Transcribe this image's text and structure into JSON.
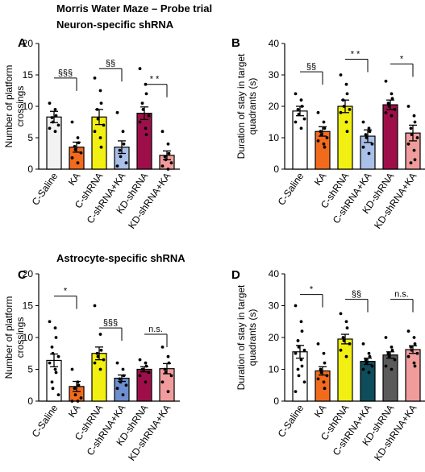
{
  "figure": {
    "title": "Morris Water Maze – Probe trial",
    "section_neuron": "Neuron-specific shRNA",
    "section_astro": "Astrocyte-specific shRNA"
  },
  "chart_data": [
    {
      "panel": "A",
      "type": "bar",
      "ylabel": "Number of platform crossings",
      "ylim": [
        0,
        20
      ],
      "yticks": [
        0,
        5,
        10,
        15,
        20
      ],
      "categories": [
        "C-Saline",
        "KA",
        "C-shRNA",
        "C-shRNA+KA",
        "KD-shRNA",
        "KD-shRNA+KA"
      ],
      "values": [
        8.3,
        3.5,
        8.3,
        3.5,
        8.9,
        2.2
      ],
      "sem": [
        0.9,
        0.8,
        1.2,
        1.0,
        1.0,
        0.7
      ],
      "colors": [
        "#f2f2f2",
        "#f26b1d",
        "#f2ef12",
        "#a9c0e8",
        "#9e0f4a",
        "#f19c9c"
      ],
      "points": [
        [
          10.5,
          9.5,
          8.5,
          8.2,
          7.5,
          7.0,
          6.5,
          6.0
        ],
        [
          7.5,
          5.0,
          4.2,
          3.6,
          3.1,
          2.6,
          1.8,
          1.0
        ],
        [
          14.5,
          12.5,
          10.5,
          9.5,
          8.0,
          7.0,
          6.0,
          5.0,
          3.5
        ],
        [
          9.0,
          6.0,
          4.0,
          3.0,
          2.0,
          1.0,
          0.5
        ],
        [
          16.0,
          13.5,
          12.0,
          10.5,
          9.5,
          8.5,
          7.5,
          6.5,
          5.5
        ],
        [
          6.0,
          4.0,
          2.5,
          2.0,
          1.5,
          1.0,
          0.5,
          0.0
        ]
      ],
      "brackets": [
        {
          "from": 0,
          "to": 1,
          "y": 14.5,
          "label": "§§§"
        },
        {
          "from": 2,
          "to": 3,
          "y": 16.0,
          "label": "§§"
        },
        {
          "from": 4,
          "to": 5,
          "y": 13.5,
          "label": "**"
        }
      ]
    },
    {
      "panel": "B",
      "type": "bar",
      "ylabel": "Duration of stay in target quadrants (s)",
      "ylim": [
        0,
        40
      ],
      "yticks": [
        0,
        10,
        20,
        30,
        40
      ],
      "categories": [
        "C-Saline",
        "KA",
        "C-shRNA",
        "C-shRNA+KA",
        "KD-shRNA",
        "KD-shRNA+KA"
      ],
      "values": [
        18.5,
        12.0,
        20.0,
        10.5,
        20.5,
        11.5
      ],
      "sem": [
        1.5,
        1.5,
        2.0,
        2.0,
        1.5,
        2.5
      ],
      "colors": [
        "#ffffff",
        "#f26b1d",
        "#f2ef12",
        "#a9c0e8",
        "#9e0f4a",
        "#f19c9c"
      ],
      "points": [
        [
          24.0,
          22.0,
          20.0,
          19.0,
          17.5,
          16.0,
          15.0,
          13.0
        ],
        [
          18.0,
          15.0,
          13.0,
          12.0,
          11.0,
          10.0,
          9.0,
          8.0,
          7.0
        ],
        [
          30.0,
          27.0,
          24.0,
          22.0,
          20.0,
          19.0,
          18.0,
          15.0,
          12.0
        ],
        [
          15.0,
          13.0,
          12.0,
          11.0,
          10.0,
          8.0,
          7.0,
          5.0
        ],
        [
          28.0,
          24.0,
          22.5,
          21.0,
          20.0,
          19.0,
          18.0,
          17.0
        ],
        [
          20.0,
          17.0,
          15.0,
          13.0,
          11.0,
          10.0,
          8.0,
          6.0,
          3.0,
          2.0
        ]
      ],
      "brackets": [
        {
          "from": 0,
          "to": 1,
          "y": 31.0,
          "label": "§§"
        },
        {
          "from": 2,
          "to": 3,
          "y": 35.0,
          "label": "**"
        },
        {
          "from": 4,
          "to": 5,
          "y": 33.5,
          "label": "*"
        }
      ]
    },
    {
      "panel": "C",
      "type": "bar",
      "ylabel": "Number of platform crossings",
      "ylim": [
        0,
        20
      ],
      "yticks": [
        0,
        5,
        10,
        15,
        20
      ],
      "categories": [
        "C-Saline",
        "KA",
        "C-shRNA",
        "C-shRNA+KA",
        "KD-shRNA",
        "KD-shRNA+KA"
      ],
      "values": [
        6.4,
        2.3,
        7.5,
        3.6,
        5.0,
        5.1
      ],
      "sem": [
        1.0,
        0.8,
        1.0,
        0.5,
        0.4,
        0.8
      ],
      "colors": [
        "#ffffff",
        "#f26b1d",
        "#f2ef12",
        "#6e8fcf",
        "#9e0f4a",
        "#f19c9c"
      ],
      "points": [
        [
          12.5,
          11.5,
          10.0,
          8.5,
          7.5,
          7.0,
          6.0,
          5.0,
          4.5,
          3.0,
          2.0,
          1.0
        ],
        [
          5.0,
          3.0,
          2.5,
          2.0,
          1.0,
          0.5,
          0.0,
          0.0
        ],
        [
          15.0,
          10.5,
          8.0,
          7.5,
          7.0,
          6.5,
          6.0,
          5.0
        ],
        [
          6.0,
          5.0,
          4.0,
          3.5,
          3.0,
          2.5,
          2.0,
          1.0
        ],
        [
          6.5,
          6.0,
          5.5,
          5.0,
          5.0,
          4.5,
          4.0,
          3.0
        ],
        [
          8.5,
          7.0,
          6.0,
          5.0,
          4.5,
          4.0,
          3.0,
          1.5
        ]
      ],
      "brackets": [
        {
          "from": 0,
          "to": 1,
          "y": 16.5,
          "label": "*"
        },
        {
          "from": 2,
          "to": 3,
          "y": 11.5,
          "label": "§§§"
        },
        {
          "from": 4,
          "to": 5,
          "y": 10.5,
          "label": "n.s."
        }
      ]
    },
    {
      "panel": "D",
      "type": "bar",
      "ylabel": "Duration of stay in target quadrants (s)",
      "ylim": [
        0,
        40
      ],
      "yticks": [
        0,
        10,
        20,
        30,
        40
      ],
      "categories": [
        "C-Saline",
        "KA",
        "C-shRNA",
        "C-shRNA+KA",
        "KD-shRNA",
        "KD-shRNA+KA"
      ],
      "values": [
        15.5,
        9.5,
        19.5,
        12.5,
        14.5,
        16.2
      ],
      "sem": [
        2.0,
        1.3,
        1.5,
        1.0,
        1.0,
        1.2
      ],
      "colors": [
        "#ffffff",
        "#f26b1d",
        "#f2ef12",
        "#0e4d5c",
        "#5a5a5a",
        "#f19c9c"
      ],
      "points": [
        [
          30.0,
          25.0,
          22.0,
          19.0,
          17.0,
          16.0,
          15.0,
          13.0,
          11.0,
          10.0,
          8.0,
          6.0,
          3.0
        ],
        [
          18.0,
          15.0,
          12.0,
          10.0,
          9.0,
          8.0,
          7.0,
          6.0,
          4.0
        ],
        [
          27.5,
          25.0,
          23.0,
          20.0,
          19.0,
          18.0,
          16.0,
          14.0
        ],
        [
          18.0,
          15.0,
          14.0,
          13.0,
          12.0,
          11.0,
          10.0,
          9.0
        ],
        [
          20.0,
          17.0,
          16.0,
          15.0,
          14.0,
          13.0,
          11.0,
          10.0
        ],
        [
          22.0,
          20.0,
          18.0,
          17.0,
          16.0,
          15.0,
          14.0,
          12.0,
          11.0
        ]
      ],
      "brackets": [
        {
          "from": 0,
          "to": 1,
          "y": 33.5,
          "label": "*"
        },
        {
          "from": 2,
          "to": 3,
          "y": 32.0,
          "label": "§§"
        },
        {
          "from": 4,
          "to": 5,
          "y": 32.0,
          "label": "n.s."
        }
      ]
    }
  ]
}
